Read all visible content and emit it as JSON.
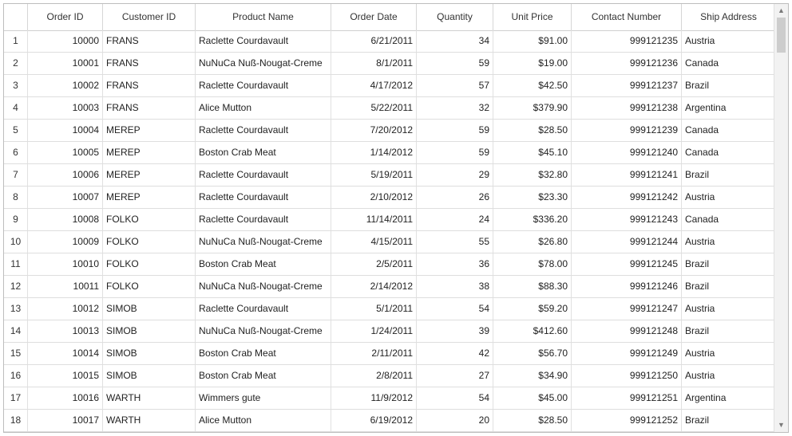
{
  "grid": {
    "columns": [
      "",
      "Order ID",
      "Customer ID",
      "Product Name",
      "Order Date",
      "Quantity",
      "Unit Price",
      "Contact Number",
      "Ship Address"
    ],
    "rows": [
      [
        "1",
        "10000",
        "FRANS",
        "Raclette Courdavault",
        "6/21/2011",
        "34",
        "$91.00",
        "999121235",
        "Austria"
      ],
      [
        "2",
        "10001",
        "FRANS",
        "NuNuCa Nuß-Nougat-Creme",
        "8/1/2011",
        "59",
        "$19.00",
        "999121236",
        "Canada"
      ],
      [
        "3",
        "10002",
        "FRANS",
        "Raclette Courdavault",
        "4/17/2012",
        "57",
        "$42.50",
        "999121237",
        "Brazil"
      ],
      [
        "4",
        "10003",
        "FRANS",
        "Alice Mutton",
        "5/22/2011",
        "32",
        "$379.90",
        "999121238",
        "Argentina"
      ],
      [
        "5",
        "10004",
        "MEREP",
        "Raclette Courdavault",
        "7/20/2012",
        "59",
        "$28.50",
        "999121239",
        "Canada"
      ],
      [
        "6",
        "10005",
        "MEREP",
        "Boston Crab Meat",
        "1/14/2012",
        "59",
        "$45.10",
        "999121240",
        "Canada"
      ],
      [
        "7",
        "10006",
        "MEREP",
        "Raclette Courdavault",
        "5/19/2011",
        "29",
        "$32.80",
        "999121241",
        "Brazil"
      ],
      [
        "8",
        "10007",
        "MEREP",
        "Raclette Courdavault",
        "2/10/2012",
        "26",
        "$23.30",
        "999121242",
        "Austria"
      ],
      [
        "9",
        "10008",
        "FOLKO",
        "Raclette Courdavault",
        "11/14/2011",
        "24",
        "$336.20",
        "999121243",
        "Canada"
      ],
      [
        "10",
        "10009",
        "FOLKO",
        "NuNuCa Nuß-Nougat-Creme",
        "4/15/2011",
        "55",
        "$26.80",
        "999121244",
        "Austria"
      ],
      [
        "11",
        "10010",
        "FOLKO",
        "Boston Crab Meat",
        "2/5/2011",
        "36",
        "$78.00",
        "999121245",
        "Brazil"
      ],
      [
        "12",
        "10011",
        "FOLKO",
        "NuNuCa Nuß-Nougat-Creme",
        "2/14/2012",
        "38",
        "$88.30",
        "999121246",
        "Brazil"
      ],
      [
        "13",
        "10012",
        "SIMOB",
        "Raclette Courdavault",
        "5/1/2011",
        "54",
        "$59.20",
        "999121247",
        "Austria"
      ],
      [
        "14",
        "10013",
        "SIMOB",
        "NuNuCa Nuß-Nougat-Creme",
        "1/24/2011",
        "39",
        "$412.60",
        "999121248",
        "Brazil"
      ],
      [
        "15",
        "10014",
        "SIMOB",
        "Boston Crab Meat",
        "2/11/2011",
        "42",
        "$56.70",
        "999121249",
        "Austria"
      ],
      [
        "16",
        "10015",
        "SIMOB",
        "Boston Crab Meat",
        "2/8/2011",
        "27",
        "$34.90",
        "999121250",
        "Austria"
      ],
      [
        "17",
        "10016",
        "WARTH",
        "Wimmers gute",
        "11/9/2012",
        "54",
        "$45.00",
        "999121251",
        "Argentina"
      ],
      [
        "18",
        "10017",
        "WARTH",
        "Alice Mutton",
        "6/19/2012",
        "20",
        "$28.50",
        "999121252",
        "Brazil"
      ]
    ]
  },
  "scrollbar": {
    "up_icon": "chevron-up-icon",
    "down_icon": "chevron-down-icon"
  }
}
